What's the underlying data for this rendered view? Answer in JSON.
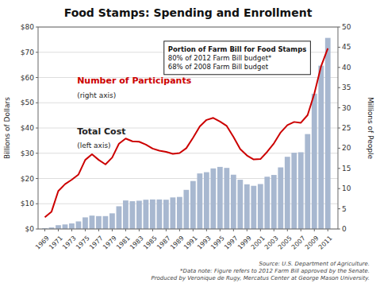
{
  "chart_data": {
    "type": "bar",
    "title": "Food Stamps: Spending and Enrollment",
    "x": [
      1969,
      1970,
      1971,
      1972,
      1973,
      1974,
      1975,
      1976,
      1977,
      1978,
      1979,
      1980,
      1981,
      1982,
      1983,
      1984,
      1985,
      1986,
      1987,
      1988,
      1989,
      1990,
      1991,
      1992,
      1993,
      1994,
      1995,
      1996,
      1997,
      1998,
      1999,
      2000,
      2001,
      2002,
      2003,
      2004,
      2005,
      2006,
      2007,
      2008,
      2009,
      2010,
      2011
    ],
    "xlim": [
      1968,
      2012.5
    ],
    "xticks": [
      1969,
      1971,
      1973,
      1975,
      1977,
      1979,
      1981,
      1983,
      1985,
      1987,
      1989,
      1991,
      1993,
      1995,
      1997,
      1999,
      2001,
      2003,
      2005,
      2007,
      2009,
      2011
    ],
    "ylabel": "Billions of Dollars",
    "y2label": "Millions of People",
    "ylim": [
      0,
      80
    ],
    "yticks": [
      {
        "value": 0,
        "label": "$0"
      },
      {
        "value": 10,
        "label": "$10"
      },
      {
        "value": 20,
        "label": "$20"
      },
      {
        "value": 30,
        "label": "$30"
      },
      {
        "value": 40,
        "label": "$40"
      },
      {
        "value": 50,
        "label": "$50"
      },
      {
        "value": 60,
        "label": "$60"
      },
      {
        "value": 70,
        "label": "$70"
      },
      {
        "value": 80,
        "label": "$80"
      }
    ],
    "y2lim": [
      0,
      50
    ],
    "y2ticks": [
      0,
      5,
      10,
      15,
      20,
      25,
      30,
      35,
      40,
      45,
      50
    ],
    "grid": true,
    "series": [
      {
        "name": "Total Cost",
        "note": "(left axis)",
        "type": "bar",
        "color": "#a8b8d0",
        "values": [
          0.3,
          0.6,
          1.5,
          1.8,
          2.2,
          3.0,
          4.6,
          5.3,
          5.1,
          5.1,
          6.2,
          9.0,
          11.3,
          11.0,
          11.2,
          11.6,
          11.7,
          11.7,
          11.6,
          12.5,
          12.7,
          15.5,
          19.0,
          22.0,
          22.5,
          24.0,
          24.6,
          24.2,
          21.5,
          19.5,
          17.7,
          17.1,
          17.8,
          20.7,
          21.4,
          24.4,
          28.6,
          30.2,
          30.4,
          37.6,
          53.6,
          64.7,
          75.7
        ]
      },
      {
        "name": "Number of Participants",
        "note": "(right axis)",
        "type": "line",
        "color": "#cc0000",
        "axis": "y2",
        "values": [
          2.9,
          4.3,
          9.4,
          11.1,
          12.2,
          13.5,
          17.1,
          18.5,
          17.1,
          16.0,
          17.7,
          21.1,
          22.4,
          21.7,
          21.6,
          20.9,
          19.9,
          19.4,
          19.1,
          18.6,
          18.8,
          20.0,
          22.6,
          25.4,
          27.0,
          27.5,
          26.6,
          25.5,
          22.8,
          19.8,
          18.2,
          17.2,
          17.3,
          19.1,
          21.2,
          23.9,
          25.7,
          26.5,
          26.3,
          28.2,
          33.5,
          40.3,
          44.7
        ]
      }
    ],
    "annotations": {
      "box_title": "Portion of Farm Bill for Food Stamps",
      "box_lines": [
        "80% of 2012 Farm Bill budget*",
        "68% of 2008 Farm Bill budget"
      ]
    },
    "source": [
      "Source: U.S. Department of Agriculture.",
      "*Data note:  Figure refers to 2012 Farm Bill approved by the Senate.",
      "Produced by Veronique de Rugy, Mercatus Center at George Mason University."
    ]
  }
}
